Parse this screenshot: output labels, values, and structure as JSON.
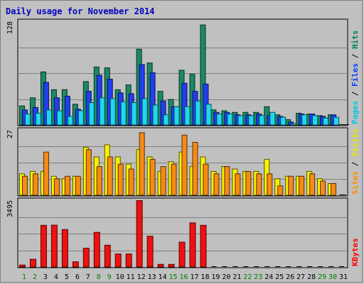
{
  "chart_data": {
    "type": "bar",
    "title": "Daily usage for November 2014",
    "x": [
      "1",
      "2",
      "3",
      "4",
      "5",
      "6",
      "7",
      "8",
      "9",
      "10",
      "11",
      "12",
      "13",
      "14",
      "15",
      "16",
      "17",
      "18",
      "19",
      "20",
      "21",
      "22",
      "23",
      "24",
      "25",
      "26",
      "27",
      "28",
      "29",
      "30",
      "31"
    ],
    "weekend_days": [
      "1",
      "2",
      "8",
      "9",
      "15",
      "16",
      "22",
      "23",
      "29",
      "30"
    ],
    "panels": [
      {
        "name": "hits-files-pages",
        "ymax": 128,
        "ymax_label": "128",
        "right_label": [
          {
            "text": "Pages",
            "color": "#00c8e6"
          },
          {
            "text": " / ",
            "color": "#000000"
          },
          {
            "text": "Files",
            "color": "#0040ff"
          },
          {
            "text": " / ",
            "color": "#000000"
          },
          {
            "text": "Hits",
            "color": "#008060"
          }
        ],
        "series": [
          {
            "name": "Hits",
            "color": "#1a8a66",
            "values": [
              24,
              34,
              66,
              44,
              44,
              26,
              54,
              72,
              71,
              44,
              50,
              94,
              77,
              42,
              32,
              68,
              63,
              124,
              19,
              18,
              16,
              16,
              16,
              23,
              13,
              7,
              15,
              14,
              12,
              13,
              0
            ]
          },
          {
            "name": "Files",
            "color": "#1f3ff0",
            "values": [
              19,
              22,
              53,
              34,
              36,
              20,
              42,
              62,
              57,
              40,
              39,
              75,
              65,
              30,
              23,
              52,
              42,
              51,
              16,
              16,
              13,
              13,
              14,
              12,
              11,
              4,
              14,
              14,
              11,
              13,
              0
            ]
          },
          {
            "name": "Pages",
            "color": "#20d8f0",
            "values": [
              14,
              15,
              19,
              18,
              11,
              18,
              28,
              34,
              33,
              29,
              28,
              33,
              25,
              13,
              23,
              23,
              30,
              26,
              14,
              14,
              12,
              12,
              12,
              16,
              10,
              2,
              13,
              12,
              9,
              10,
              0
            ]
          }
        ]
      },
      {
        "name": "visits-sites",
        "ymax": 27,
        "ymax_label": "27",
        "right_label": [
          {
            "text": "Sites",
            "color": "#ff8c00"
          },
          {
            "text": " / ",
            "color": "#000000"
          },
          {
            "text": "Visits",
            "color": "#e6e600"
          }
        ],
        "series": [
          {
            "name": "Visits",
            "color": "#f7f000",
            "values": [
              9,
              10,
              10,
              8,
              7,
              8,
              20,
              16,
              21,
              16,
              13,
              19,
              16,
              10,
              14,
              18,
              12,
              16,
              10,
              12,
              11,
              10,
              10,
              15,
              7,
              8,
              8,
              10,
              7,
              5,
              0
            ]
          },
          {
            "name": "Sites",
            "color": "#f58b15",
            "values": [
              8,
              9,
              18,
              7,
              8,
              8,
              19,
              12,
              16,
              13,
              11,
              26,
              15,
              12,
              13,
              25,
              22,
              13,
              9,
              12,
              9,
              10,
              9,
              9,
              4,
              8,
              8,
              9,
              6,
              5,
              0
            ]
          }
        ]
      },
      {
        "name": "kbytes",
        "ymax": 3495,
        "ymax_label": "3495",
        "right_label": [
          {
            "text": "KBytes",
            "color": "#ff0000"
          }
        ],
        "series": [
          {
            "name": "KBytes",
            "color": "#f01010",
            "values": [
              120,
              422,
              2200,
              2210,
              1980,
              291,
              1000,
              1830,
              1160,
              700,
              700,
              3495,
              1630,
              156,
              156,
              1320,
              2330,
              2200,
              0,
              0,
              0,
              0,
              0,
              0,
              0,
              0,
              0,
              0,
              0,
              0,
              0
            ]
          }
        ]
      }
    ]
  }
}
